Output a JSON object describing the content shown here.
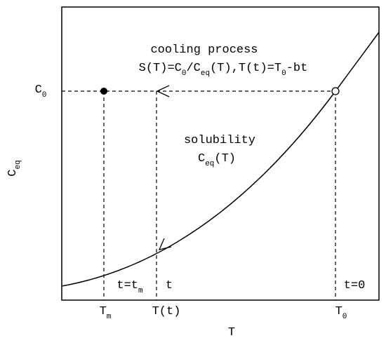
{
  "labels": {
    "y_axis": [
      {
        "text": "C"
      },
      {
        "sub": "eq"
      }
    ],
    "x_axis": [
      {
        "text": "T"
      }
    ],
    "c0": [
      {
        "text": "C"
      },
      {
        "sub": "0"
      }
    ],
    "tm": [
      {
        "text": "T"
      },
      {
        "sub": "m"
      }
    ],
    "tt": [
      {
        "text": "T(t)"
      }
    ],
    "t0": [
      {
        "text": "T"
      },
      {
        "sub": "0"
      }
    ],
    "t_eq_tm": [
      {
        "text": "t=t"
      },
      {
        "sub": "m"
      }
    ],
    "t_label": [
      {
        "text": "t"
      }
    ],
    "t_zero": [
      {
        "text": "t=0"
      }
    ],
    "cooling": [
      {
        "text": "cooling process"
      }
    ],
    "formula": [
      {
        "text": "S(T)=C"
      },
      {
        "sub": "0"
      },
      {
        "text": "/C"
      },
      {
        "sub": "eq"
      },
      {
        "text": "(T),T(t)=T"
      },
      {
        "sub": "0"
      },
      {
        "text": "-bt"
      }
    ],
    "solubility": [
      {
        "text": "solubility"
      }
    ],
    "ceq_t": [
      {
        "text": "C"
      },
      {
        "sub": "eq"
      },
      {
        "text": "(T)"
      }
    ]
  }
}
